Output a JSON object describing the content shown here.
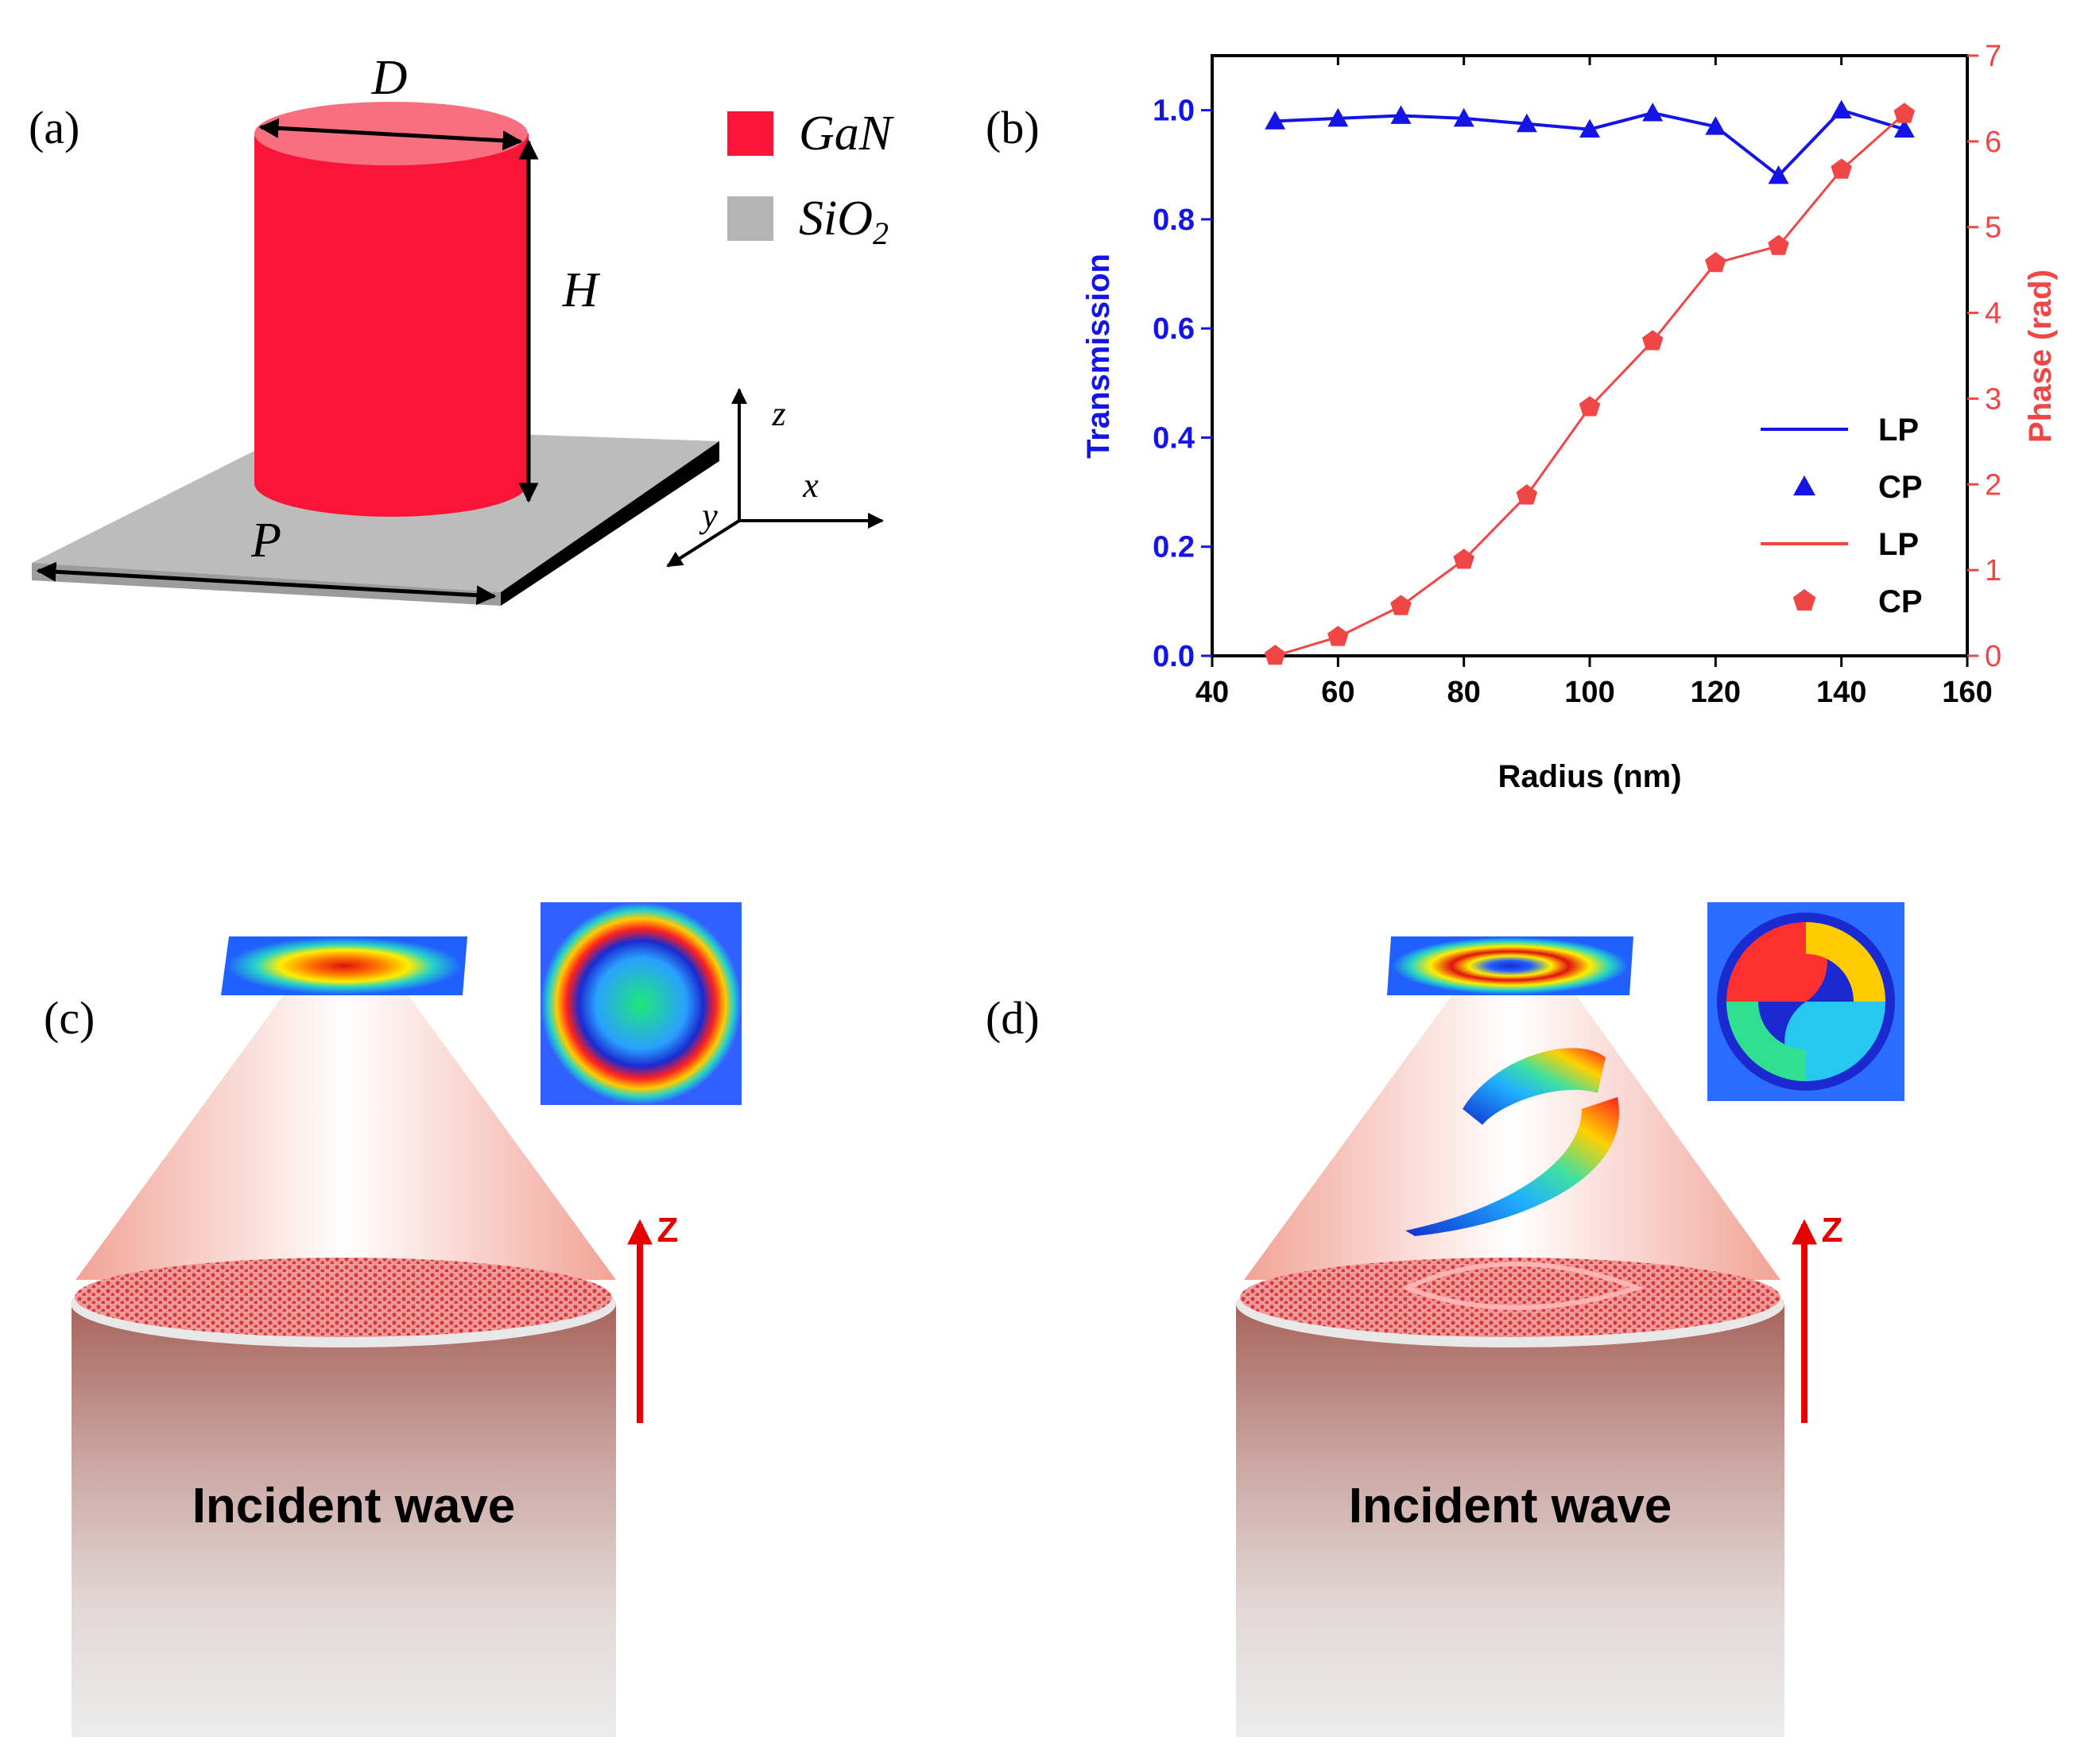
{
  "panel_labels": {
    "a": "(a)",
    "b": "(b)",
    "c": "(c)",
    "d": "(d)"
  },
  "panel_a": {
    "dim_labels": {
      "diameter": "D",
      "height": "H",
      "period": "P"
    },
    "axes": {
      "x": "x",
      "y": "y",
      "z": "z"
    },
    "legend": [
      {
        "label": "GaN",
        "color": "#fa1437"
      },
      {
        "label": "SiO",
        "sub": "2",
        "color": "#b4b4b4"
      }
    ]
  },
  "chart_data": {
    "type": "line",
    "title": "",
    "xlabel": "Radius (nm)",
    "ylabel": "Transmission",
    "y2label": "Phase (rad)",
    "xlim": [
      40,
      160
    ],
    "ylim": [
      0.0,
      1.1
    ],
    "y2lim": [
      0,
      7
    ],
    "x_ticks": [
      "40",
      "60",
      "80",
      "100",
      "120",
      "140",
      "160"
    ],
    "y_ticks": [
      "0.0",
      "0.2",
      "0.4",
      "0.6",
      "0.8",
      "1.0"
    ],
    "y2_ticks": [
      "0",
      "1",
      "2",
      "3",
      "4",
      "5",
      "6",
      "7"
    ],
    "x": [
      50,
      60,
      70,
      80,
      90,
      100,
      110,
      120,
      130,
      140,
      150
    ],
    "series": [
      {
        "name": "Transmission",
        "axis": "left",
        "color": "#1414e6",
        "marker": "triangle",
        "values": [
          0.98,
          0.985,
          0.99,
          0.985,
          0.975,
          0.965,
          0.995,
          0.97,
          0.88,
          1.0,
          0.965
        ]
      },
      {
        "name": "Phase",
        "axis": "right",
        "color": "#f04646",
        "marker": "pentagon",
        "values": [
          0.0,
          0.22,
          0.58,
          1.12,
          1.87,
          2.9,
          3.67,
          4.58,
          4.78,
          5.67,
          6.32
        ]
      }
    ],
    "legend": [
      {
        "label": "LP",
        "kind": "line",
        "color": "#1414e6"
      },
      {
        "label": "CP",
        "kind": "triangle",
        "color": "#1414e6"
      },
      {
        "label": "LP",
        "kind": "line",
        "color": "#f04646"
      },
      {
        "label": "CP",
        "kind": "pentagon",
        "color": "#f04646"
      }
    ],
    "legend_position": "bottom-right"
  },
  "panel_c": {
    "caption": "Incident wave",
    "axis_label": "Z"
  },
  "panel_d": {
    "caption": "Incident wave",
    "axis_label": "Z"
  }
}
